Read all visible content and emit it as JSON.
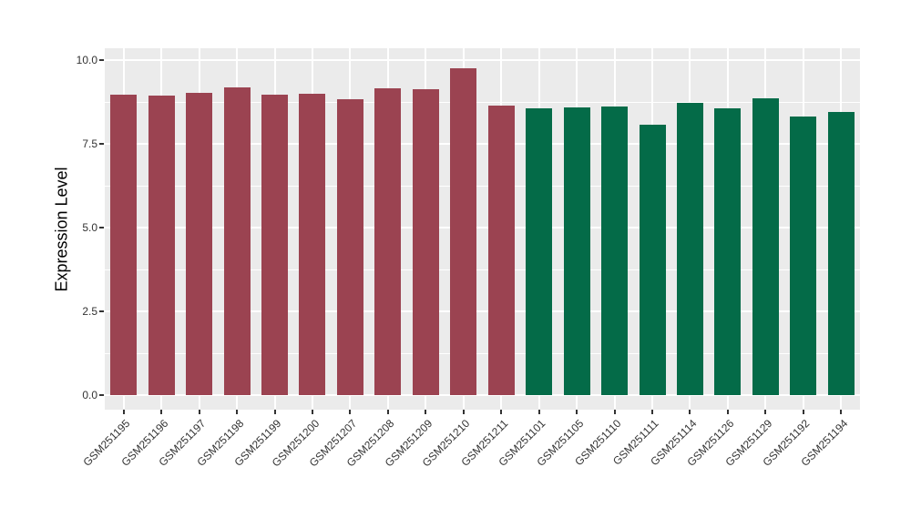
{
  "chart_data": {
    "type": "bar",
    "title": "",
    "xlabel": "",
    "ylabel": "Expression Level",
    "legend_position": "none",
    "grid": "on",
    "panel_background": "#EBEBEB",
    "grid_color": "#FFFFFF",
    "axis_text_color": "#333333",
    "tick_mark_color": "#333333",
    "ylim": [
      0,
      10.35
    ],
    "y_major_ticks": [
      0.0,
      2.5,
      5.0,
      7.5,
      10.0
    ],
    "y_major_tick_labels": [
      "0.0",
      "2.5",
      "5.0",
      "7.5",
      "10.0"
    ],
    "y_minor_ticks": [
      1.25,
      3.75,
      6.25,
      8.75
    ],
    "group_colors": {
      "group1": "#9B4351",
      "group2": "#046B48"
    },
    "bars": [
      {
        "label": "GSM251195",
        "value": 8.97,
        "group": "group1"
      },
      {
        "label": "GSM251196",
        "value": 8.94,
        "group": "group1"
      },
      {
        "label": "GSM251197",
        "value": 9.02,
        "group": "group1"
      },
      {
        "label": "GSM251198",
        "value": 9.18,
        "group": "group1"
      },
      {
        "label": "GSM251199",
        "value": 8.97,
        "group": "group1"
      },
      {
        "label": "GSM251200",
        "value": 9.0,
        "group": "group1"
      },
      {
        "label": "GSM251207",
        "value": 8.83,
        "group": "group1"
      },
      {
        "label": "GSM251208",
        "value": 9.16,
        "group": "group1"
      },
      {
        "label": "GSM251209",
        "value": 9.13,
        "group": "group1"
      },
      {
        "label": "GSM251210",
        "value": 9.76,
        "group": "group1"
      },
      {
        "label": "GSM251211",
        "value": 8.64,
        "group": "group1"
      },
      {
        "label": "GSM251101",
        "value": 8.56,
        "group": "group2"
      },
      {
        "label": "GSM251105",
        "value": 8.59,
        "group": "group2"
      },
      {
        "label": "GSM251110",
        "value": 8.62,
        "group": "group2"
      },
      {
        "label": "GSM251111",
        "value": 8.08,
        "group": "group2"
      },
      {
        "label": "GSM251114",
        "value": 8.73,
        "group": "group2"
      },
      {
        "label": "GSM251126",
        "value": 8.56,
        "group": "group2"
      },
      {
        "label": "GSM251129",
        "value": 8.87,
        "group": "group2"
      },
      {
        "label": "GSM251192",
        "value": 8.32,
        "group": "group2"
      },
      {
        "label": "GSM251194",
        "value": 8.44,
        "group": "group2"
      }
    ]
  }
}
